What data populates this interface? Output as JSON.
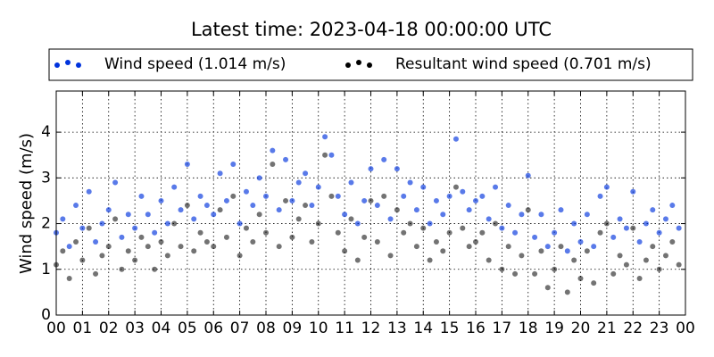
{
  "chart_data": {
    "type": "scatter",
    "title": "Latest time: 2023-04-18 00:00:00 UTC",
    "y_label": "Wind speed (m/s)",
    "x": [
      0,
      0.25,
      0.5,
      0.75,
      1,
      1.25,
      1.5,
      1.75,
      2,
      2.25,
      2.5,
      2.75,
      3,
      3.25,
      3.5,
      3.75,
      4,
      4.25,
      4.5,
      4.75,
      5,
      5.25,
      5.5,
      5.75,
      6,
      6.25,
      6.5,
      6.75,
      7,
      7.25,
      7.5,
      7.75,
      8,
      8.25,
      8.5,
      8.75,
      9,
      9.25,
      9.5,
      9.75,
      10,
      10.25,
      10.5,
      10.75,
      11,
      11.25,
      11.5,
      11.75,
      12,
      12.25,
      12.5,
      12.75,
      13,
      13.25,
      13.5,
      13.75,
      14,
      14.25,
      14.5,
      14.75,
      15,
      15.25,
      15.5,
      15.75,
      16,
      16.25,
      16.5,
      16.75,
      17,
      17.25,
      17.5,
      17.75,
      18,
      18.25,
      18.5,
      18.75,
      19,
      19.25,
      19.5,
      19.75,
      20,
      20.25,
      20.5,
      20.75,
      21,
      21.25,
      21.5,
      21.75,
      22,
      22.25,
      22.5,
      22.75,
      23,
      23.25,
      23.5,
      23.75
    ],
    "series": [
      {
        "name": "Wind speed (1.014 m/s)",
        "color": "#0033dd",
        "values": [
          1.8,
          2.1,
          1.5,
          2.4,
          1.9,
          2.7,
          1.6,
          2.0,
          2.3,
          2.9,
          1.7,
          2.2,
          1.9,
          2.6,
          2.2,
          1.8,
          2.5,
          2.0,
          2.8,
          2.3,
          3.3,
          2.1,
          2.6,
          2.4,
          2.2,
          3.1,
          2.5,
          3.3,
          2.0,
          2.7,
          2.4,
          3.0,
          2.6,
          3.6,
          2.3,
          3.4,
          2.5,
          2.9,
          3.1,
          2.4,
          2.8,
          3.9,
          3.5,
          2.6,
          2.2,
          2.9,
          2.0,
          2.5,
          3.2,
          2.4,
          3.4,
          2.1,
          3.2,
          2.6,
          2.9,
          2.3,
          2.8,
          2.0,
          2.5,
          2.2,
          2.6,
          3.85,
          2.7,
          2.3,
          2.5,
          2.6,
          2.1,
          2.8,
          1.9,
          2.4,
          1.8,
          2.2,
          3.05,
          1.7,
          2.2,
          1.5,
          1.8,
          2.3,
          1.4,
          2.0,
          1.6,
          2.2,
          1.5,
          2.6,
          2.8,
          1.7,
          2.1,
          1.9,
          2.7,
          1.6,
          2.0,
          2.3,
          1.8,
          2.1,
          2.4,
          1.9
        ]
      },
      {
        "name": "Resultant wind speed (0.701 m/s)",
        "color": "#000000",
        "values": [
          1.1,
          1.4,
          0.8,
          1.6,
          1.2,
          1.9,
          0.9,
          1.3,
          1.5,
          2.1,
          1.0,
          1.4,
          1.2,
          1.7,
          1.5,
          1.0,
          1.6,
          1.3,
          2.0,
          1.5,
          2.4,
          1.4,
          1.8,
          1.6,
          1.5,
          2.3,
          1.7,
          2.6,
          1.3,
          1.9,
          1.6,
          2.2,
          1.8,
          3.3,
          1.5,
          2.5,
          1.7,
          2.1,
          2.4,
          1.6,
          2.0,
          3.5,
          2.6,
          1.8,
          1.4,
          2.1,
          1.2,
          1.7,
          2.5,
          1.6,
          2.6,
          1.3,
          2.3,
          1.8,
          2.0,
          1.5,
          1.9,
          1.2,
          1.6,
          1.4,
          1.8,
          2.8,
          1.9,
          1.5,
          1.6,
          1.8,
          1.2,
          2.0,
          1.0,
          1.5,
          0.9,
          1.3,
          2.3,
          0.9,
          1.4,
          0.6,
          1.0,
          1.5,
          0.5,
          1.2,
          0.8,
          1.4,
          0.7,
          1.8,
          2.0,
          0.9,
          1.3,
          1.1,
          1.9,
          0.8,
          1.2,
          1.5,
          1.0,
          1.3,
          1.6,
          1.1
        ]
      }
    ],
    "xlim": [
      0,
      24
    ],
    "xticks": [
      {
        "value": 0,
        "label": "00"
      },
      {
        "value": 1,
        "label": "01"
      },
      {
        "value": 2,
        "label": "02"
      },
      {
        "value": 3,
        "label": "03"
      },
      {
        "value": 4,
        "label": "04"
      },
      {
        "value": 5,
        "label": "05"
      },
      {
        "value": 6,
        "label": "06"
      },
      {
        "value": 7,
        "label": "07"
      },
      {
        "value": 8,
        "label": "08"
      },
      {
        "value": 9,
        "label": "09"
      },
      {
        "value": 10,
        "label": "10"
      },
      {
        "value": 11,
        "label": "11"
      },
      {
        "value": 12,
        "label": "12"
      },
      {
        "value": 13,
        "label": "13"
      },
      {
        "value": 14,
        "label": "14"
      },
      {
        "value": 15,
        "label": "15"
      },
      {
        "value": 16,
        "label": "16"
      },
      {
        "value": 17,
        "label": "17"
      },
      {
        "value": 18,
        "label": "18"
      },
      {
        "value": 19,
        "label": "19"
      },
      {
        "value": 20,
        "label": "20"
      },
      {
        "value": 21,
        "label": "21"
      },
      {
        "value": 22,
        "label": "22"
      },
      {
        "value": 23,
        "label": "23"
      },
      {
        "value": 24,
        "label": "00"
      }
    ],
    "ylim": [
      0,
      4.9
    ],
    "yticks": [
      0,
      1,
      2,
      3,
      4
    ],
    "grid": true,
    "legend": "top"
  }
}
